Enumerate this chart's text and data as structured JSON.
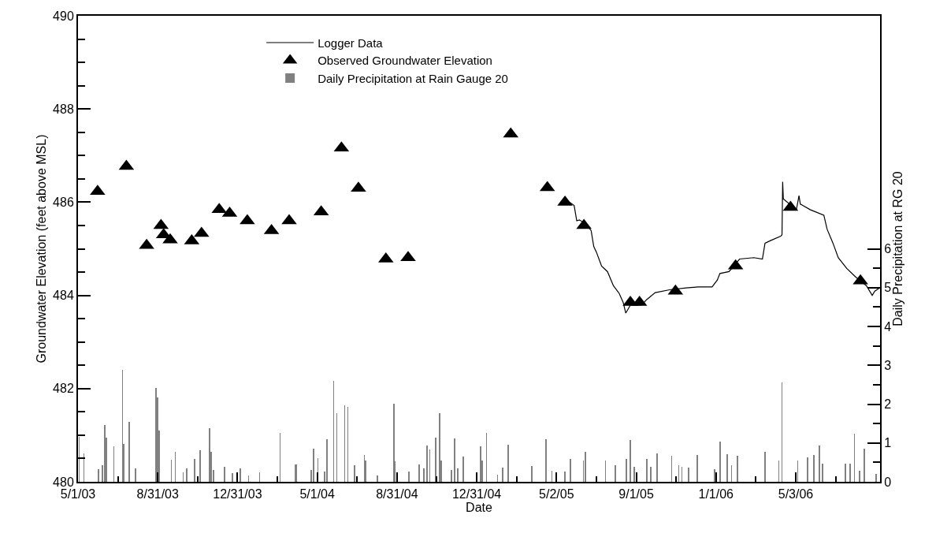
{
  "chart_data": {
    "type": "line",
    "xlabel": "Date",
    "ylabel": "Groundwater Elevation (feet above MSL)",
    "y2label": "Daily Precipitation at RG 20",
    "xlim": [
      "2003-05-01",
      "2006-09-09"
    ],
    "xticks": [
      {
        "value": "2003-05-01",
        "label": "5/1/03"
      },
      {
        "value": "2003-07-01",
        "label": null
      },
      {
        "value": "2003-08-31",
        "label": "8/31/03"
      },
      {
        "value": "2003-10-31",
        "label": null
      },
      {
        "value": "2003-12-31",
        "label": "12/31/03"
      },
      {
        "value": "2004-03-01",
        "label": null
      },
      {
        "value": "2004-05-01",
        "label": "5/1/04"
      },
      {
        "value": "2004-07-01",
        "label": null
      },
      {
        "value": "2004-08-31",
        "label": "8/31/04"
      },
      {
        "value": "2004-10-31",
        "label": null
      },
      {
        "value": "2004-12-31",
        "label": "12/31/04"
      },
      {
        "value": "2005-03-02",
        "label": null
      },
      {
        "value": "2005-05-02",
        "label": "5/2/05"
      },
      {
        "value": "2005-07-02",
        "label": null
      },
      {
        "value": "2005-09-01",
        "label": "9/1/05"
      },
      {
        "value": "2005-11-01",
        "label": null
      },
      {
        "value": "2006-01-01",
        "label": "1/1/06"
      },
      {
        "value": "2006-03-03",
        "label": null
      },
      {
        "value": "2006-05-03",
        "label": "5/3/06"
      },
      {
        "value": "2006-07-03",
        "label": null
      }
    ],
    "ylim": [
      480,
      490
    ],
    "yticks": [
      480,
      {
        "value": 480.5,
        "label": null
      },
      {
        "value": 481,
        "label": null
      },
      {
        "value": 481.5,
        "label": null
      },
      482,
      {
        "value": 482.5,
        "label": null
      },
      {
        "value": 483,
        "label": null
      },
      {
        "value": 483.5,
        "label": null
      },
      484,
      {
        "value": 484.5,
        "label": null
      },
      {
        "value": 485,
        "label": null
      },
      {
        "value": 485.5,
        "label": null
      },
      486,
      {
        "value": 486.5,
        "label": null
      },
      {
        "value": 487,
        "label": null
      },
      {
        "value": 487.5,
        "label": null
      },
      488,
      {
        "value": 488.5,
        "label": null
      },
      {
        "value": 489,
        "label": null
      },
      {
        "value": 489.5,
        "label": null
      },
      490
    ],
    "y2lim": [
      0,
      12
    ],
    "y2ticks": [
      0,
      {
        "value": 0.5,
        "label": null
      },
      1,
      {
        "value": 1.5,
        "label": null
      },
      2,
      {
        "value": 2.5,
        "label": null
      },
      3,
      {
        "value": 3.5,
        "label": null
      },
      4,
      {
        "value": 4.5,
        "label": null
      },
      5,
      {
        "value": 5.5,
        "label": null
      },
      6
    ],
    "grid": false,
    "legend": "top",
    "series": [
      {
        "name": "Logger Data",
        "color": "#000000",
        "marker": "none",
        "line_style": "solid",
        "x": [
          "2005-05-22",
          "2005-05-29",
          "2005-06-02",
          "2005-06-06",
          "2005-06-15",
          "2005-06-24",
          "2005-06-28",
          "2005-07-02",
          "2005-07-10",
          "2005-07-19",
          "2005-07-28",
          "2005-08-06",
          "2005-08-12",
          "2005-08-16",
          "2005-08-23",
          "2005-09-09",
          "2005-09-17",
          "2005-09-30",
          "2005-10-22",
          "2005-11-16",
          "2005-12-05",
          "2005-12-26",
          "2006-01-03",
          "2006-01-07",
          "2006-01-21",
          "2006-02-06",
          "2006-02-28",
          "2006-03-13",
          "2006-03-17",
          "2006-03-26",
          "2006-04-10",
          "2006-04-12",
          "2006-04-13",
          "2006-04-14",
          "2006-05-04",
          "2006-05-08",
          "2006-05-10",
          "2006-05-25",
          "2006-06-15",
          "2006-06-20",
          "2006-06-29",
          "2006-07-07",
          "2006-07-20",
          "2006-08-03",
          "2006-08-19",
          "2006-08-28",
          "2006-09-01",
          "2006-09-08"
        ],
        "values": [
          486.0,
          485.93,
          485.6,
          485.62,
          485.54,
          485.39,
          485.05,
          484.93,
          484.63,
          484.51,
          484.21,
          484.04,
          483.85,
          483.62,
          483.79,
          483.79,
          483.91,
          484.06,
          484.12,
          484.16,
          484.18,
          484.18,
          484.33,
          484.47,
          484.51,
          484.78,
          484.81,
          484.78,
          485.12,
          485.18,
          485.27,
          485.3,
          486.44,
          486.07,
          485.84,
          486.14,
          485.96,
          485.84,
          485.72,
          485.42,
          485.12,
          484.81,
          484.58,
          484.39,
          484.21,
          484.0,
          484.09,
          484.16
        ]
      },
      {
        "name": "Observed Groundwater Elevation",
        "type": "scatter",
        "color": "#000000",
        "marker": "triangle",
        "x": [
          "2003-05-31",
          "2003-07-14",
          "2003-08-14",
          "2003-09-05",
          "2003-09-09",
          "2003-09-19",
          "2003-10-22",
          "2003-11-06",
          "2003-12-03",
          "2003-12-19",
          "2004-01-15",
          "2004-02-21",
          "2004-03-19",
          "2004-05-07",
          "2004-06-07",
          "2004-07-03",
          "2004-08-14",
          "2004-09-17",
          "2005-02-21",
          "2005-04-18",
          "2005-05-15",
          "2005-06-13",
          "2005-08-23",
          "2005-09-06",
          "2005-10-31",
          "2006-01-31",
          "2006-04-25",
          "2006-08-10"
        ],
        "values": [
          486.23,
          486.77,
          485.07,
          485.5,
          485.3,
          485.19,
          485.17,
          485.33,
          485.84,
          485.76,
          485.6,
          485.39,
          485.6,
          485.79,
          487.16,
          486.3,
          484.78,
          484.81,
          487.46,
          486.31,
          486.0,
          485.5,
          483.85,
          483.85,
          484.09,
          484.63,
          485.89,
          484.31
        ]
      },
      {
        "name": "Daily Precipitation at Rain Gauge 20",
        "type": "bar",
        "axis": "y2",
        "color": "#808080",
        "x": [
          "2003-05-03",
          "2003-05-10",
          "2003-06-01",
          "2003-06-07",
          "2003-06-11",
          "2003-06-13",
          "2003-06-25",
          "2003-07-08",
          "2003-07-10",
          "2003-07-18",
          "2003-07-28",
          "2003-08-28",
          "2003-08-31",
          "2003-09-02",
          "2003-09-21",
          "2003-09-27",
          "2003-10-09",
          "2003-10-14",
          "2003-10-26",
          "2003-11-04",
          "2003-11-18",
          "2003-11-21",
          "2003-11-24",
          "2003-12-11",
          "2003-12-23",
          "2004-01-04",
          "2004-01-17",
          "2004-02-03",
          "2004-03-05",
          "2004-03-28",
          "2004-03-30",
          "2004-04-22",
          "2004-04-25",
          "2004-05-02",
          "2004-05-12",
          "2004-05-16",
          "2004-05-26",
          "2004-05-31",
          "2004-06-12",
          "2004-06-17",
          "2004-06-27",
          "2004-07-12",
          "2004-07-14",
          "2004-08-01",
          "2004-08-26",
          "2004-08-28",
          "2004-09-18",
          "2004-10-04",
          "2004-10-11",
          "2004-10-16",
          "2004-10-20",
          "2004-10-29",
          "2004-11-04",
          "2004-11-07",
          "2004-11-22",
          "2004-11-27",
          "2004-12-02",
          "2004-12-10",
          "2005-01-06",
          "2005-01-08",
          "2005-01-15",
          "2005-02-01",
          "2005-02-09",
          "2005-02-17",
          "2005-03-25",
          "2005-04-16",
          "2005-04-25",
          "2005-05-15",
          "2005-05-23",
          "2005-06-12",
          "2005-06-15",
          "2005-07-16",
          "2005-07-31",
          "2005-08-17",
          "2005-08-23",
          "2005-08-29",
          "2005-09-17",
          "2005-09-23",
          "2005-10-03",
          "2005-10-25",
          "2005-11-05",
          "2005-11-10",
          "2005-11-20",
          "2005-12-03",
          "2005-12-30",
          "2006-01-07",
          "2006-01-18",
          "2006-01-25",
          "2006-02-03",
          "2006-03-17",
          "2006-04-07",
          "2006-04-12",
          "2006-05-06",
          "2006-05-21",
          "2006-05-31",
          "2006-06-08",
          "2006-06-13",
          "2006-07-18",
          "2006-07-25",
          "2006-08-01",
          "2006-08-09",
          "2006-08-16",
          "2006-09-03"
        ],
        "values": [
          1.15,
          0.73,
          0.32,
          0.43,
          1.46,
          1.13,
          0.91,
          2.88,
          0.97,
          1.55,
          0.34,
          2.42,
          2.18,
          1.33,
          0.56,
          0.78,
          0.25,
          0.34,
          0.59,
          0.81,
          1.39,
          0.77,
          0.3,
          0.38,
          0.22,
          0.34,
          0.16,
          0.24,
          1.25,
          0.45,
          0.44,
          0.31,
          0.85,
          0.61,
          0.26,
          1.09,
          2.59,
          1.77,
          1.96,
          1.92,
          0.42,
          0.7,
          0.55,
          0.16,
          2.02,
          0.52,
          0.26,
          0.44,
          0.34,
          0.93,
          0.83,
          1.13,
          1.76,
          0.55,
          0.3,
          1.11,
          0.34,
          0.65,
          0.91,
          0.55,
          1.25,
          0.19,
          0.36,
          0.95,
          0.4,
          1.1,
          0.28,
          0.27,
          0.59,
          0.55,
          0.77,
          0.55,
          0.43,
          0.59,
          1.08,
          0.38,
          0.59,
          0.38,
          0.74,
          0.68,
          0.42,
          0.38,
          0.36,
          0.7,
          0.32,
          1.03,
          0.72,
          0.43,
          0.68,
          0.77,
          0.55,
          2.55,
          0.55,
          0.62,
          0.7,
          0.93,
          0.47,
          0.47,
          0.47,
          1.24,
          0.29,
          0.85,
          0.21
        ]
      }
    ]
  }
}
